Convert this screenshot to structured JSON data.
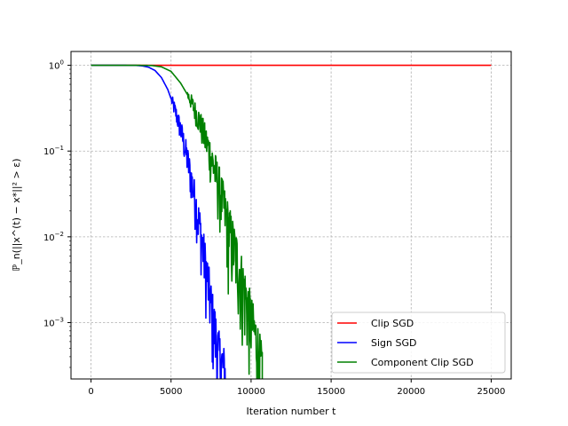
{
  "chart_data": {
    "type": "line",
    "title": "",
    "xlabel": "Iteration number t",
    "ylabel": "ℙ_n(||x^(t) − x*||² > ε)",
    "xlim": [
      -1250,
      26250
    ],
    "ylim": [
      0.00022,
      1.45
    ],
    "yscale": "log",
    "grid": true,
    "legend_position": "lower-right",
    "x_ticks": [
      0,
      5000,
      10000,
      15000,
      20000,
      25000
    ],
    "y_ticks": [
      {
        "value": 0.001,
        "base": "10",
        "exp": "−3"
      },
      {
        "value": 0.01,
        "base": "10",
        "exp": "−2"
      },
      {
        "value": 0.1,
        "base": "10",
        "exp": "−1"
      },
      {
        "value": 1,
        "base": "10",
        "exp": "0"
      }
    ],
    "series": [
      {
        "name": "Clip SGD",
        "color": "#ff0000",
        "points": [
          [
            0,
            1.0
          ],
          [
            25000,
            1.0
          ]
        ]
      },
      {
        "name": "Sign SGD",
        "color": "#0000ff",
        "noisy_after": 5000,
        "points": [
          [
            0,
            1.0
          ],
          [
            2000,
            1.0
          ],
          [
            2800,
            0.998
          ],
          [
            3200,
            0.985
          ],
          [
            3600,
            0.95
          ],
          [
            4000,
            0.87
          ],
          [
            4400,
            0.72
          ],
          [
            4800,
            0.52
          ],
          [
            5200,
            0.32
          ],
          [
            5600,
            0.18
          ],
          [
            6000,
            0.085
          ],
          [
            6400,
            0.035
          ],
          [
            6800,
            0.013
          ],
          [
            7200,
            0.0042
          ],
          [
            7600,
            0.0012
          ],
          [
            8000,
            0.00042
          ],
          [
            8400,
            0.00025
          ]
        ]
      },
      {
        "name": "Component Clip SGD",
        "color": "#008000",
        "noisy_after": 6000,
        "points": [
          [
            0,
            1.0
          ],
          [
            3000,
            1.0
          ],
          [
            3800,
            0.995
          ],
          [
            4400,
            0.96
          ],
          [
            5000,
            0.85
          ],
          [
            5600,
            0.62
          ],
          [
            6200,
            0.4
          ],
          [
            6800,
            0.22
          ],
          [
            7400,
            0.1
          ],
          [
            8000,
            0.04
          ],
          [
            8600,
            0.013
          ],
          [
            9200,
            0.005
          ],
          [
            9800,
            0.0016
          ],
          [
            10400,
            0.00055
          ],
          [
            10700,
            0.00028
          ]
        ]
      }
    ]
  }
}
